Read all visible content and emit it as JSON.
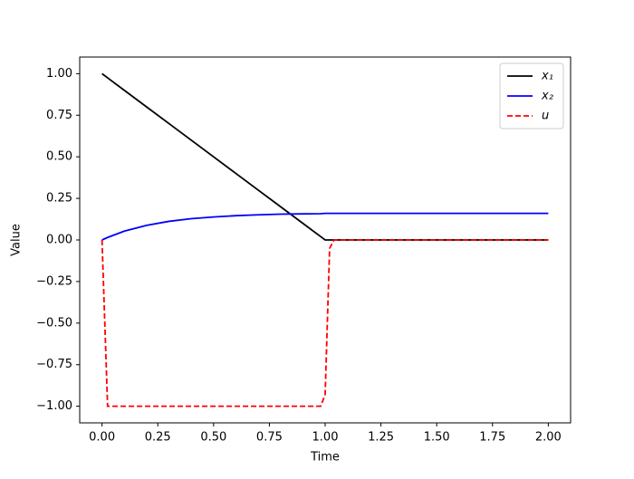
{
  "chart_data": {
    "type": "line",
    "x_label": "Time",
    "y_label": "Value",
    "x": [
      0,
      0.025,
      0.1,
      0.2,
      0.3,
      0.4,
      0.5,
      0.6,
      0.7,
      0.8,
      0.9,
      0.98,
      1.0,
      1.02,
      1.04,
      1.1,
      1.5,
      2.0
    ],
    "series": [
      {
        "name": "x₁",
        "color": "#000000",
        "dash": false,
        "values": [
          1,
          0.975,
          0.9,
          0.8,
          0.7,
          0.6,
          0.5,
          0.4,
          0.3,
          0.2,
          0.1,
          0.02,
          0,
          0,
          0,
          0,
          0,
          0
        ]
      },
      {
        "name": "x₂",
        "color": "#0000ff",
        "dash": false,
        "values": [
          0,
          0.015,
          0.053,
          0.088,
          0.112,
          0.128,
          0.138,
          0.146,
          0.151,
          0.155,
          0.157,
          0.158,
          0.16,
          0.16,
          0.16,
          0.16,
          0.16,
          0.16
        ]
      },
      {
        "name": "u",
        "color": "#ff0000",
        "dash": true,
        "values": [
          0,
          -1,
          -1,
          -1,
          -1,
          -1,
          -1,
          -1,
          -1,
          -1,
          -1,
          -1,
          -0.93,
          -0.05,
          0,
          0,
          0,
          0
        ]
      }
    ],
    "xlim": [
      -0.1,
      2.1
    ],
    "ylim": [
      -1.1,
      1.1
    ],
    "xticks": [
      {
        "value": 0,
        "label": "0.00"
      },
      {
        "value": 0.25,
        "label": "0.25"
      },
      {
        "value": 0.5,
        "label": "0.50"
      },
      {
        "value": 0.75,
        "label": "0.75"
      },
      {
        "value": 1,
        "label": "1.00"
      },
      {
        "value": 1.25,
        "label": "1.25"
      },
      {
        "value": 1.5,
        "label": "1.50"
      },
      {
        "value": 1.75,
        "label": "1.75"
      },
      {
        "value": 2,
        "label": "2.00"
      }
    ],
    "yticks": [
      {
        "value": -1,
        "label": "−1.00"
      },
      {
        "value": -0.75,
        "label": "−0.75"
      },
      {
        "value": -0.5,
        "label": "−0.50"
      },
      {
        "value": -0.25,
        "label": "−0.25"
      },
      {
        "value": 0,
        "label": "0.00"
      },
      {
        "value": 0.25,
        "label": "0.25"
      },
      {
        "value": 0.5,
        "label": "0.50"
      },
      {
        "value": 0.75,
        "label": "0.75"
      },
      {
        "value": 1,
        "label": "1.00"
      }
    ],
    "legend": "upper right",
    "grid": false
  }
}
